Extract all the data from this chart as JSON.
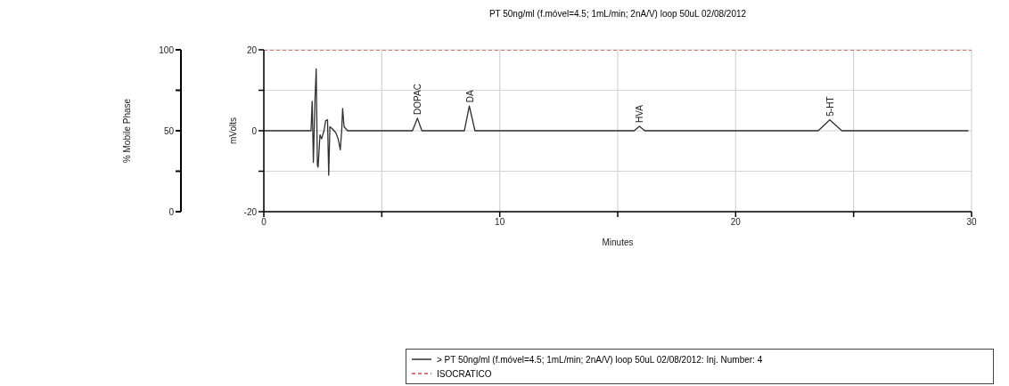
{
  "chart_data": {
    "type": "line",
    "title": "PT 50ng/ml (f.móvel=4.5; 1mL/min; 2nA/V) loop 50uL 02/08/2012",
    "xlabel": "Minutes",
    "ylabel": "mVolts",
    "y2label": "% Mobile Phase",
    "xlim": [
      0,
      30
    ],
    "xticks": [
      0,
      {
        "value": 5,
        "label": null
      },
      10,
      {
        "value": 15,
        "label": null
      },
      20,
      {
        "value": 25,
        "label": null
      },
      30
    ],
    "ylim": [
      -20,
      20
    ],
    "yticks": [
      -20,
      {
        "value": -10,
        "label": null
      },
      0,
      {
        "value": 10,
        "label": null
      },
      20
    ],
    "y2lim": [
      0,
      100
    ],
    "y2ticks": [
      0,
      {
        "value": 25,
        "label": null
      },
      50,
      {
        "value": 75,
        "label": null
      },
      100
    ],
    "grid": true,
    "legend": "bottom",
    "marker": "none",
    "series": [
      {
        "name": "> PT 50ng/ml (f.móvel=4.5; 1mL/min; 2nA/V) loop 50uL 02/08/2012: Inj. Number: 4",
        "color": "#303030",
        "line_style": "solid",
        "x": [
          0,
          1,
          2,
          2.05,
          2.1,
          2.17,
          2.22,
          2.27,
          2.3,
          2.38,
          2.45,
          2.55,
          2.62,
          2.7,
          2.75,
          2.8,
          2.9,
          3.05,
          3.15,
          3.24,
          3.3,
          3.34,
          3.4,
          3.55,
          5,
          6.3,
          6.51,
          6.7,
          8.5,
          8.71,
          8.95,
          12,
          15.7,
          15.92,
          16.15,
          20,
          23.5,
          23.99,
          24.5,
          27,
          29.87
        ],
        "values": [
          0,
          0,
          0,
          7.3,
          -7.8,
          8,
          15.3,
          -8.5,
          -9,
          -1,
          -2,
          0,
          2.5,
          2.7,
          -11,
          1,
          0.5,
          -0.5,
          -2,
          -4.7,
          0,
          5.5,
          1,
          0,
          0,
          0,
          3.1,
          0,
          0,
          6.1,
          0,
          0,
          0,
          1.1,
          0,
          0,
          0,
          2.7,
          0,
          0,
          0
        ]
      },
      {
        "name": "ISOCRATICO",
        "color": "#c0504d",
        "line_style": "dashed",
        "axis": "y2",
        "x": [
          0,
          30
        ],
        "values": [
          100,
          100
        ]
      }
    ],
    "annotations": [
      {
        "text": "DOPAC",
        "x": 6.51,
        "y": 3.1
      },
      {
        "text": "DA",
        "x": 8.71,
        "y": 6.1
      },
      {
        "text": "HVA",
        "x": 15.92,
        "y": 1.1
      },
      {
        "text": "5-HT",
        "x": 23.99,
        "y": 2.7
      }
    ]
  }
}
